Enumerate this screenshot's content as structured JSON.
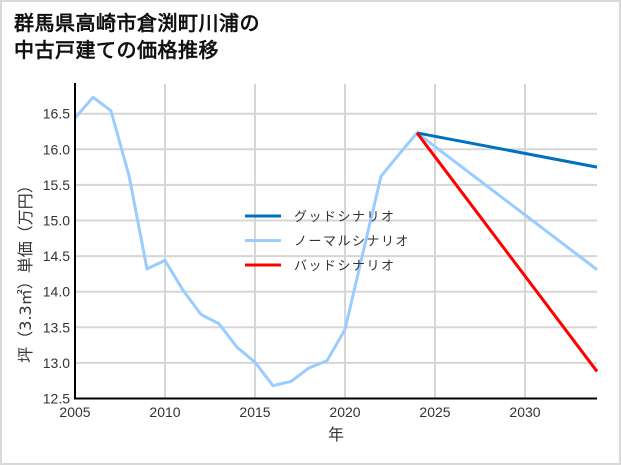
{
  "title_line1": "群馬県高崎市倉渕町川浦の",
  "title_line2": "中古戸建ての価格推移",
  "chart_data": {
    "type": "line",
    "title": "群馬県高崎市倉渕町川浦の中古戸建ての価格推移",
    "xlabel": "年",
    "ylabel": "坪（3.3㎡）単価（万円）",
    "xlim": [
      2005,
      2034
    ],
    "ylim": [
      12.5,
      16.92
    ],
    "xticks": [
      2005,
      2010,
      2015,
      2020,
      2025,
      2030
    ],
    "yticks": [
      12.5,
      13.0,
      13.5,
      14.0,
      14.5,
      15.0,
      15.5,
      16.0,
      16.5
    ],
    "grid": true,
    "legend_position": "center",
    "series": [
      {
        "name": "グッドシナリオ",
        "color": "#0070c0",
        "x": [
          2024,
          2034
        ],
        "y": [
          16.23,
          15.75
        ]
      },
      {
        "name": "ノーマルシナリオ",
        "color": "#99ccff",
        "x": [
          2005,
          2006,
          2007,
          2008,
          2009,
          2010,
          2011,
          2012,
          2013,
          2014,
          2015,
          2016,
          2017,
          2018,
          2019,
          2020,
          2021,
          2022,
          2023,
          2024,
          2034
        ],
        "y": [
          16.44,
          16.73,
          16.54,
          15.63,
          14.32,
          14.44,
          14.02,
          13.68,
          13.55,
          13.22,
          13.01,
          12.68,
          12.74,
          12.93,
          13.03,
          13.47,
          14.55,
          15.62,
          15.93,
          16.23,
          14.31
        ]
      },
      {
        "name": "バッドシナリオ",
        "color": "#ff0000",
        "x": [
          2024,
          2034
        ],
        "y": [
          16.23,
          12.88
        ]
      }
    ]
  }
}
